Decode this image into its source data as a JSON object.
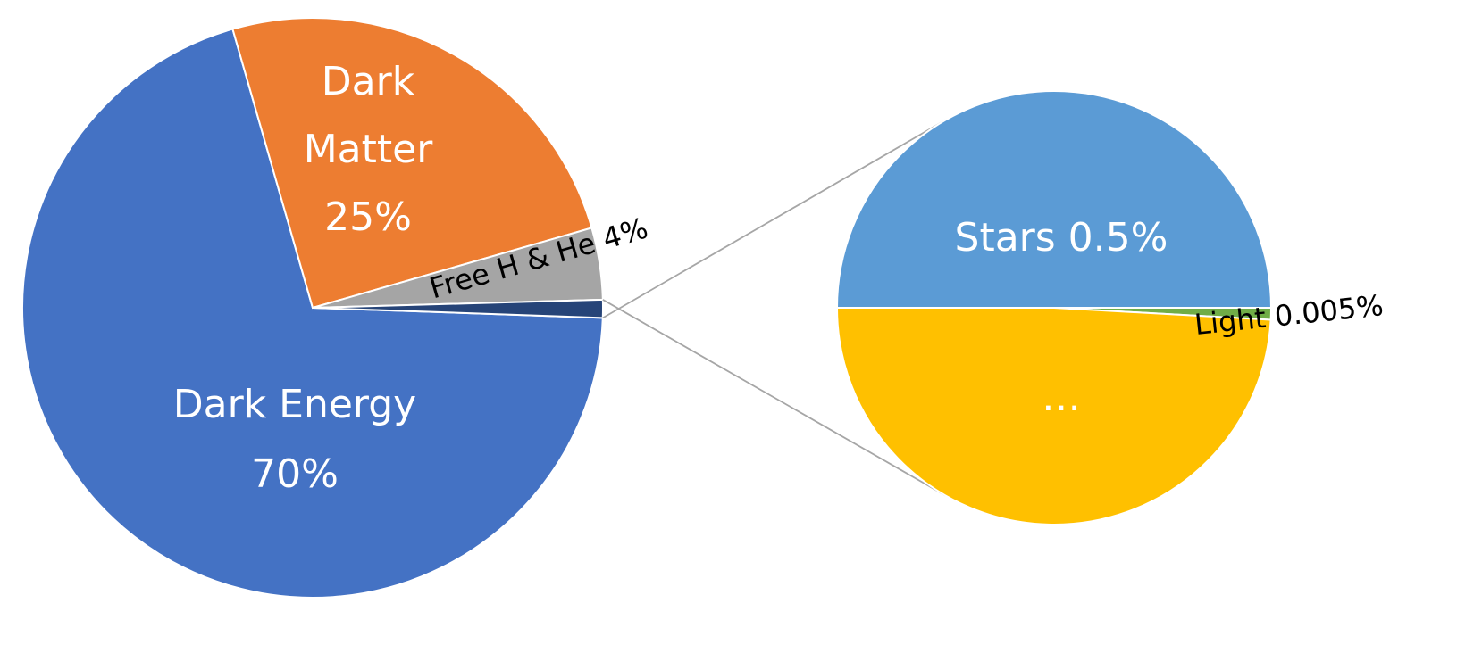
{
  "chart_data": [
    {
      "type": "pie",
      "slices": [
        {
          "label_lines": [
            "Dark Energy",
            "70%"
          ],
          "value": 70,
          "color": "#4472C4",
          "label_color": "white"
        },
        {
          "label_lines": [
            "Dark",
            "Matter",
            "25%"
          ],
          "value": 25,
          "color": "#ED7D31",
          "label_color": "white"
        },
        {
          "label_lines": [
            "Free H & He 4%"
          ],
          "value": 4,
          "color": "#A5A5A5",
          "label_color": "black"
        },
        {
          "label_lines": [],
          "value": 1,
          "color": "#264478",
          "label_color": "white"
        }
      ]
    },
    {
      "type": "pie",
      "role": "breakdown of small slice",
      "slices": [
        {
          "label_lines": [
            "Stars 0.5%"
          ],
          "value": 0.5,
          "color": "#5B9BD5",
          "label_color": "white"
        },
        {
          "label_lines": [
            "Light 0.005%"
          ],
          "value": 0.005,
          "color": "#70AD47",
          "label_color": "black"
        },
        {
          "label_lines": [
            "…"
          ],
          "value": 0.495,
          "color": "#FFC000",
          "label_color": "white"
        }
      ]
    }
  ],
  "colors": {
    "connector": "#A6A6A6",
    "slice_border": "#ffffff"
  }
}
